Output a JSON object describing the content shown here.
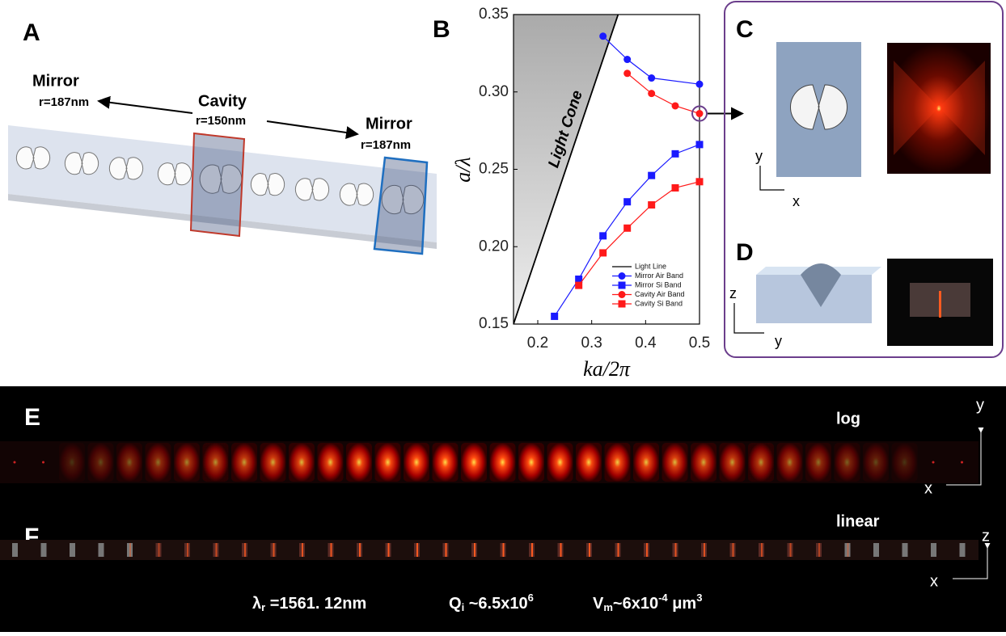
{
  "chart_data": {
    "type": "line",
    "xlabel": "ka/2π",
    "ylabel": "a/λ",
    "annotation": "Light Cone",
    "xlim": [
      0.155,
      0.5
    ],
    "ylim": [
      0.15,
      0.35
    ],
    "xticks": [
      0.2,
      0.3,
      0.4,
      0.5
    ],
    "yticks": [
      0.15,
      {
        "value": 0.2,
        "label": "0.20"
      },
      0.25,
      {
        "value": 0.3,
        "label": "0.30"
      },
      0.35
    ],
    "legend": "lower right",
    "series": [
      {
        "name": "Light Line",
        "color": "#000000",
        "x": [
          0.155,
          0.349
        ],
        "values": [
          0.15,
          0.35
        ]
      },
      {
        "name": "Mirror Air Band",
        "color": "#1a1aff",
        "marker": "circle",
        "x": [
          0.321,
          0.366,
          0.411,
          0.5
        ],
        "values": [
          0.336,
          0.321,
          0.309,
          0.305
        ]
      },
      {
        "name": "Mirror Si Band",
        "color": "#1a1aff",
        "marker": "square",
        "x": [
          0.231,
          0.276,
          0.321,
          0.366,
          0.411,
          0.455,
          0.5
        ],
        "values": [
          0.155,
          0.179,
          0.207,
          0.229,
          0.246,
          0.26,
          0.266
        ]
      },
      {
        "name": "Cavity Air Band",
        "color": "#ff1a1a",
        "marker": "circle",
        "x": [
          0.366,
          0.411,
          0.455,
          0.5
        ],
        "values": [
          0.312,
          0.299,
          0.291,
          0.286
        ]
      },
      {
        "name": "Cavity Si Band",
        "color": "#ff1a1a",
        "marker": "square",
        "x": [
          0.276,
          0.321,
          0.366,
          0.411,
          0.455,
          0.5
        ],
        "values": [
          0.175,
          0.196,
          0.212,
          0.227,
          0.238,
          0.242
        ]
      }
    ]
  },
  "panels": {
    "A": {
      "letter": "A",
      "left_mirror": {
        "title": "Mirror",
        "radius": "r=187nm"
      },
      "cavity": {
        "title": "Cavity",
        "radius": "r=150nm"
      },
      "right_mirror": {
        "title": "Mirror",
        "radius": "r=187nm"
      }
    },
    "B": {
      "letter": "B"
    },
    "C": {
      "letter": "C",
      "axes": [
        "y",
        "x"
      ]
    },
    "D": {
      "letter": "D",
      "axes": [
        "z",
        "y"
      ]
    },
    "E": {
      "letter": "E",
      "scale": "log",
      "axes": [
        "y",
        "x"
      ]
    },
    "F": {
      "letter": "F",
      "scale": "linear",
      "axes": [
        "z",
        "x"
      ]
    },
    "footer": {
      "wavelength": [
        "λ",
        "r",
        " =1561. 12nm"
      ],
      "q": [
        "Q",
        "i",
        " ~6.5x10",
        "6"
      ],
      "volume": [
        "V",
        "m",
        "~6x10",
        "-4",
        " μm",
        "3"
      ]
    }
  }
}
